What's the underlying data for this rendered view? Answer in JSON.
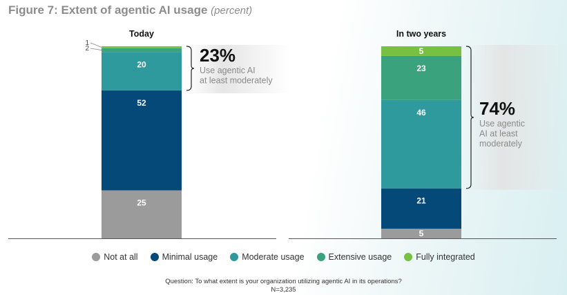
{
  "figure": {
    "title": "Figure 7: Extent of agentic AI usage",
    "subtitle": "(percent)"
  },
  "colors": {
    "not_at_all": "#9b9b9b",
    "minimal_usage": "#044977",
    "moderate_usage": "#2e9a9e",
    "extensive_usage": "#3aa27d",
    "fully_integrated": "#76c142"
  },
  "chart_data": {
    "type": "bar",
    "stacked": true,
    "orientation": "vertical",
    "ylim": [
      0,
      100
    ],
    "grid": false,
    "legend_position": "bottom",
    "categories": [
      "Today",
      "In two years"
    ],
    "series": [
      {
        "name": "Not at all",
        "key": "not_at_all",
        "values": [
          25,
          5
        ]
      },
      {
        "name": "Minimal usage",
        "key": "minimal_usage",
        "values": [
          52,
          21
        ]
      },
      {
        "name": "Moderate usage",
        "key": "moderate_usage",
        "values": [
          20,
          46
        ]
      },
      {
        "name": "Extensive usage",
        "key": "extensive_usage",
        "values": [
          2,
          23
        ]
      },
      {
        "name": "Fully integrated",
        "key": "fully_integrated",
        "values": [
          1,
          5
        ]
      }
    ],
    "annotations": [
      {
        "category": "Today",
        "value": "23%",
        "text": "Use agentic AI at least moderately",
        "lines": [
          "Use agentic AI",
          "at least moderately"
        ]
      },
      {
        "category": "In two years",
        "value": "74%",
        "text": "Use agentic AI at least moderately",
        "lines": [
          "Use agentic",
          "AI at least",
          "moderately"
        ]
      }
    ]
  },
  "footnote": {
    "question": "Question: To what extent is your organization utilizing agentic AI in its operations?",
    "n": "N=3,235"
  }
}
